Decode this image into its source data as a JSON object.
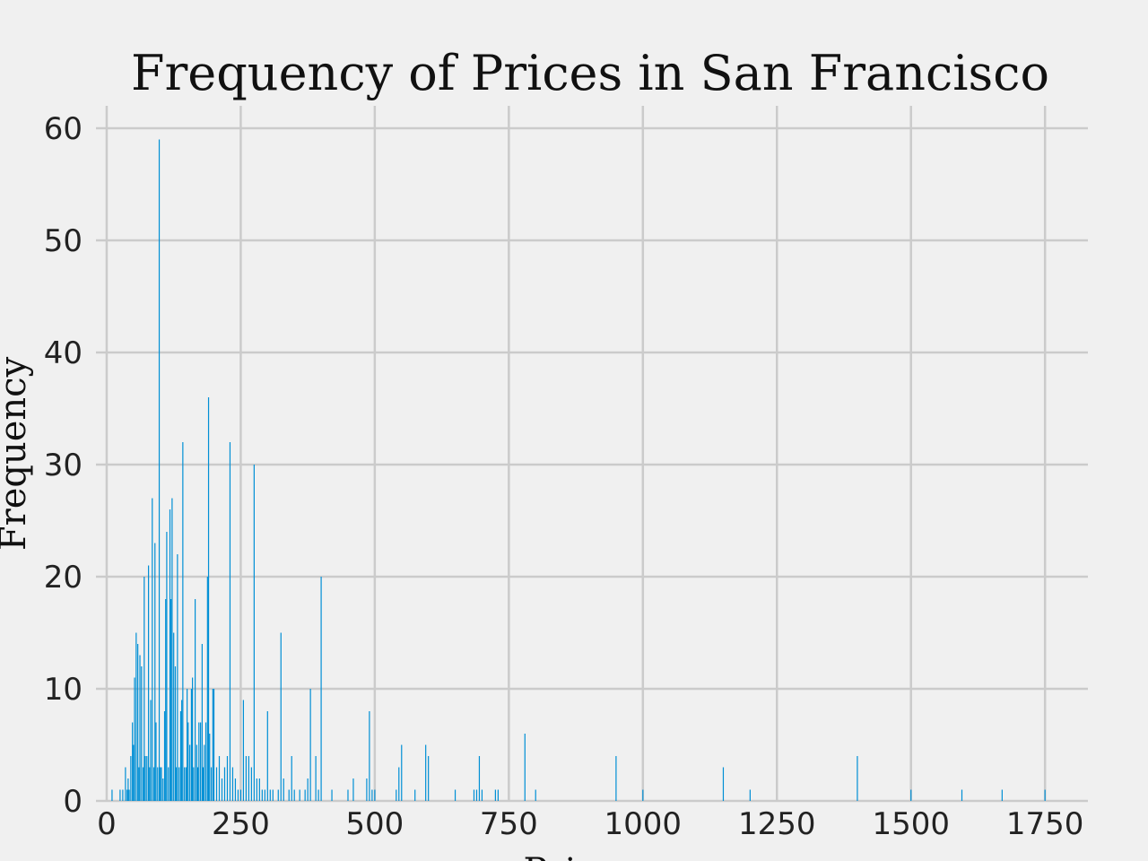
{
  "chart_data": {
    "type": "bar",
    "title": "Frequency of Prices in San Francisco",
    "xlabel": "Price",
    "ylabel": "Frequency",
    "xlim": [
      -20,
      1830
    ],
    "ylim": [
      0,
      62
    ],
    "xticks": [
      0,
      250,
      500,
      750,
      1000,
      1250,
      1500,
      1750
    ],
    "yticks": [
      0,
      10,
      20,
      30,
      40,
      50,
      60
    ],
    "xtick_labels": [
      "0",
      "250",
      "500",
      "750",
      "1000",
      "1250",
      "1500",
      "1750"
    ],
    "ytick_labels": [
      "0",
      "10",
      "20",
      "30",
      "40",
      "50",
      "60"
    ],
    "grid": true,
    "bar_color": "#008fd5",
    "background": "#f0f0f0",
    "x": [
      10,
      25,
      30,
      35,
      38,
      40,
      42,
      45,
      48,
      50,
      52,
      55,
      58,
      60,
      62,
      65,
      68,
      70,
      72,
      75,
      78,
      80,
      82,
      85,
      88,
      90,
      92,
      95,
      98,
      100,
      102,
      105,
      108,
      110,
      112,
      115,
      118,
      120,
      122,
      125,
      128,
      130,
      132,
      135,
      138,
      140,
      142,
      145,
      148,
      150,
      152,
      155,
      158,
      160,
      162,
      165,
      168,
      170,
      172,
      175,
      178,
      180,
      182,
      185,
      188,
      190,
      192,
      195,
      198,
      200,
      205,
      210,
      215,
      220,
      225,
      230,
      235,
      240,
      245,
      250,
      255,
      260,
      265,
      270,
      275,
      280,
      285,
      290,
      295,
      300,
      305,
      310,
      320,
      325,
      330,
      340,
      345,
      350,
      360,
      370,
      375,
      380,
      390,
      395,
      400,
      420,
      450,
      460,
      485,
      490,
      495,
      500,
      540,
      545,
      550,
      575,
      595,
      600,
      650,
      685,
      690,
      695,
      700,
      725,
      730,
      780,
      800,
      950,
      1000,
      1150,
      1200,
      1400,
      1500,
      1595,
      1670,
      1750
    ],
    "values": [
      1,
      1,
      1,
      3,
      1,
      2,
      1,
      4,
      7,
      5,
      11,
      15,
      14,
      3,
      13,
      12,
      3,
      20,
      4,
      4,
      21,
      3,
      9,
      27,
      3,
      23,
      7,
      3,
      59,
      3,
      3,
      2,
      8,
      18,
      24,
      3,
      26,
      18,
      27,
      15,
      12,
      3,
      22,
      3,
      8,
      9,
      32,
      3,
      3,
      10,
      7,
      5,
      10,
      11,
      3,
      18,
      5,
      3,
      7,
      7,
      14,
      3,
      5,
      7,
      20,
      36,
      6,
      3,
      10,
      10,
      3,
      4,
      2,
      3,
      4,
      32,
      3,
      2,
      1,
      1,
      9,
      4,
      4,
      3,
      30,
      2,
      2,
      1,
      1,
      8,
      1,
      1,
      1,
      15,
      2,
      1,
      4,
      1,
      1,
      1,
      2,
      10,
      4,
      1,
      20,
      1,
      1,
      2,
      2,
      8,
      1,
      1,
      1,
      3,
      5,
      1,
      5,
      4,
      1,
      1,
      1,
      4,
      1,
      1,
      1,
      6,
      1,
      4,
      1,
      3,
      1,
      4,
      1,
      1,
      1,
      1
    ]
  }
}
